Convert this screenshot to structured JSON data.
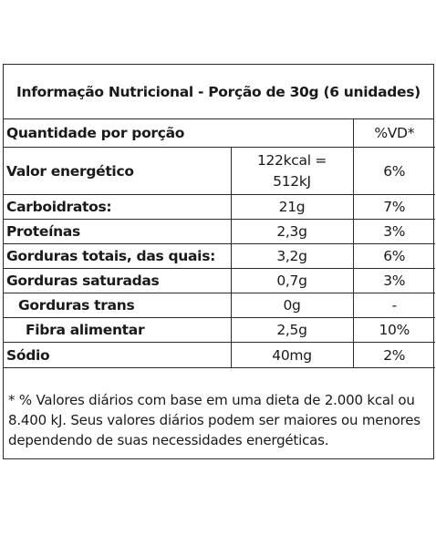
{
  "title": "Informação Nutricional - Porção de 30g (6 unidades)",
  "header": {
    "quantity_label": "Quantidade por porção",
    "vd_label": "%VD*"
  },
  "rows": [
    {
      "name": "Valor energético",
      "value_line1": "122kcal =",
      "value_line2": "512kJ",
      "vd": "6%"
    },
    {
      "name": "Carboidratos:",
      "value": "21g",
      "vd": "7%"
    },
    {
      "name": "Proteínas",
      "value": "2,3g",
      "vd": "3%"
    },
    {
      "name": "Gorduras totais, das quais:",
      "value": "3,2g",
      "vd": "6%"
    },
    {
      "name": "Gorduras saturadas",
      "value": "0,7g",
      "vd": "3%"
    },
    {
      "name": "Gorduras trans",
      "value": "0g",
      "vd": "-"
    },
    {
      "name": "Fibra alimentar",
      "value": "2,5g",
      "vd": "10%"
    },
    {
      "name": "Sódio",
      "value": "40mg",
      "vd": "2%"
    }
  ],
  "footnote": " * % Valores diários com base em uma dieta de 2.000 kcal ou 8.400 kJ. Seus valores diários podem ser maiores ou menores dependendo de suas necessidades energéticas."
}
